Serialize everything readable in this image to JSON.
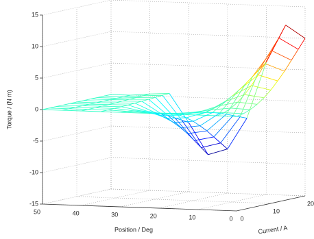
{
  "chart_data": {
    "type": "surface",
    "colormap": "jet",
    "grid": true,
    "xlabel": "Position / Deg",
    "ylabel": "Current / A",
    "zlabel": "Torque / (N m)",
    "x": [
      0,
      5,
      10,
      15,
      20,
      25,
      30,
      35,
      40,
      45,
      50
    ],
    "y": [
      0,
      2,
      4,
      6,
      8,
      10,
      12,
      14,
      16,
      18,
      20
    ],
    "z": [
      [
        0,
        0,
        0,
        0,
        0,
        0,
        0,
        0,
        0,
        0,
        0
      ],
      [
        0.2,
        0.24,
        0.12,
        -0.06,
        -0.16,
        -0.18,
        -0.08,
        0.01,
        0.01,
        0,
        0
      ],
      [
        0.6,
        0.72,
        0.36,
        -0.18,
        -0.48,
        -0.54,
        -0.24,
        0.03,
        0.02,
        0,
        0
      ],
      [
        1.2,
        1.44,
        0.72,
        -0.36,
        -0.96,
        -1.08,
        -0.48,
        0.06,
        0.04,
        0,
        0
      ],
      [
        2,
        2.4,
        1.2,
        -0.6,
        -1.6,
        -1.8,
        -0.8,
        0.1,
        0.06,
        0,
        0
      ],
      [
        3,
        3.6,
        1.8,
        -0.9,
        -2.4,
        -2.7,
        -1.2,
        0.15,
        0.09,
        0,
        0
      ],
      [
        4.2,
        5.04,
        2.52,
        -1.26,
        -3.36,
        -3.78,
        -1.68,
        0.21,
        0.13,
        0,
        0
      ],
      [
        5.5,
        6.6,
        3.3,
        -1.65,
        -4.4,
        -4.95,
        -2.2,
        0.28,
        0.17,
        0,
        0
      ],
      [
        7,
        8.4,
        4.2,
        -2.1,
        -5.6,
        -6.3,
        -2.8,
        0.35,
        0.21,
        0,
        0
      ],
      [
        8.5,
        10.2,
        5.1,
        -2.55,
        -6.8,
        -7.65,
        -3.4,
        0.43,
        0.26,
        0,
        0
      ],
      [
        10,
        12,
        6,
        -3,
        -8,
        -9,
        -4,
        0.5,
        0.3,
        0,
        0
      ]
    ],
    "xlim": [
      0,
      50
    ],
    "xticks": [
      0,
      10,
      20,
      30,
      40,
      50
    ],
    "ylim": [
      0,
      20
    ],
    "yticks": [
      0,
      10,
      20
    ],
    "zlim": [
      -15,
      15
    ],
    "zticks": [
      -15,
      -10,
      -5,
      0,
      5,
      10,
      15
    ]
  }
}
